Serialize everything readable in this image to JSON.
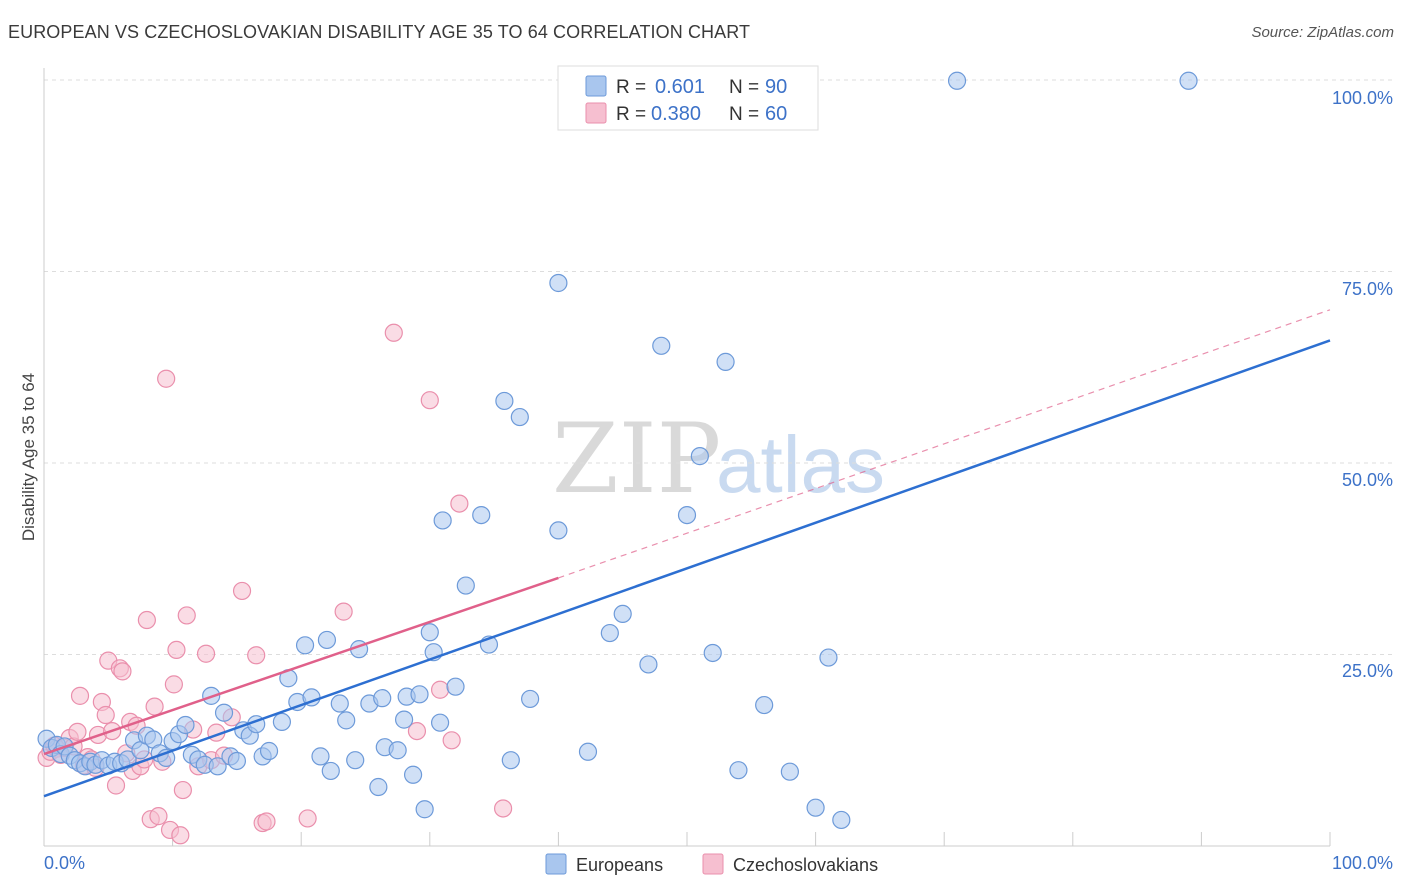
{
  "title": "EUROPEAN VS CZECHOSLOVAKIAN DISABILITY AGE 35 TO 64 CORRELATION CHART",
  "source": "Source: ZipAtlas.com",
  "watermark": {
    "part1": "ZIP",
    "part2": "atlas"
  },
  "colors": {
    "european_fill": "#a9c6ee",
    "european_stroke": "#6d9ad9",
    "european_line": "#2d6fd1",
    "czech_fill": "#f6bfd0",
    "czech_stroke": "#ea8fac",
    "czech_line": "#e0608a",
    "grid": "#dddddd",
    "axis_label": "#3d72c8"
  },
  "legend": {
    "european": {
      "r_label": "R =",
      "r_value": "0.601",
      "n_label": "N =",
      "n_value": "90"
    },
    "czech": {
      "r_label": "R =",
      "r_value": "0.380",
      "n_label": "N =",
      "n_value": "60"
    }
  },
  "chart_data": {
    "type": "scatter",
    "title": "EUROPEAN VS CZECHOSLOVAKIAN DISABILITY AGE 35 TO 64 CORRELATION CHART",
    "xlabel": "",
    "ylabel": "Disability Age 35 to 64",
    "xlim": [
      0,
      100
    ],
    "ylim": [
      0,
      100
    ],
    "x_tick_labels": [
      "0.0%",
      "100.0%"
    ],
    "y_ticks": [
      25,
      50,
      75,
      100
    ],
    "y_tick_labels": [
      "25.0%",
      "50.0%",
      "75.0%",
      "100.0%"
    ],
    "series": [
      {
        "name": "Europeans",
        "r": 0.601,
        "n": 90,
        "trend": {
          "x0": 0,
          "y0": 6.5,
          "x1": 100,
          "y1": 66,
          "dashed_to": null
        },
        "points": [
          [
            0.2,
            14.0
          ],
          [
            0.6,
            12.8
          ],
          [
            1.0,
            13.2
          ],
          [
            1.3,
            12.0
          ],
          [
            1.6,
            13.0
          ],
          [
            2.0,
            11.8
          ],
          [
            2.4,
            11.2
          ],
          [
            2.8,
            10.8
          ],
          [
            3.2,
            10.4
          ],
          [
            3.6,
            11.0
          ],
          [
            4.0,
            10.6
          ],
          [
            4.5,
            11.2
          ],
          [
            5.0,
            10.5
          ],
          [
            5.5,
            11.0
          ],
          [
            6.0,
            10.8
          ],
          [
            6.5,
            11.3
          ],
          [
            7.0,
            13.8
          ],
          [
            7.5,
            12.5
          ],
          [
            8.0,
            14.4
          ],
          [
            8.5,
            13.9
          ],
          [
            9.0,
            12.1
          ],
          [
            9.5,
            11.5
          ],
          [
            10.0,
            13.7
          ],
          [
            10.5,
            14.6
          ],
          [
            11.0,
            15.8
          ],
          [
            11.5,
            11.9
          ],
          [
            12.0,
            11.3
          ],
          [
            12.5,
            10.6
          ],
          [
            13.0,
            19.6
          ],
          [
            13.5,
            10.4
          ],
          [
            14.0,
            17.4
          ],
          [
            14.5,
            11.7
          ],
          [
            15.0,
            11.1
          ],
          [
            15.5,
            15.1
          ],
          [
            16.0,
            14.4
          ],
          [
            16.5,
            15.9
          ],
          [
            17.0,
            11.7
          ],
          [
            17.5,
            12.4
          ],
          [
            18.5,
            16.2
          ],
          [
            19.0,
            21.9
          ],
          [
            19.7,
            18.8
          ],
          [
            20.3,
            26.2
          ],
          [
            20.8,
            19.4
          ],
          [
            21.5,
            11.7
          ],
          [
            22.3,
            9.8
          ],
          [
            22.0,
            26.9
          ],
          [
            23.0,
            18.6
          ],
          [
            23.5,
            16.4
          ],
          [
            24.2,
            11.2
          ],
          [
            24.5,
            25.7
          ],
          [
            25.3,
            18.6
          ],
          [
            26.0,
            7.7
          ],
          [
            26.3,
            19.3
          ],
          [
            26.5,
            12.9
          ],
          [
            27.5,
            12.5
          ],
          [
            28.0,
            16.5
          ],
          [
            28.2,
            19.5
          ],
          [
            28.7,
            9.3
          ],
          [
            29.2,
            19.8
          ],
          [
            29.6,
            4.8
          ],
          [
            30.0,
            27.9
          ],
          [
            30.3,
            25.3
          ],
          [
            30.8,
            16.1
          ],
          [
            31.0,
            42.5
          ],
          [
            32.0,
            20.8
          ],
          [
            32.8,
            34.0
          ],
          [
            34.0,
            43.2
          ],
          [
            34.6,
            26.3
          ],
          [
            35.8,
            58.1
          ],
          [
            36.3,
            11.2
          ],
          [
            37.0,
            56.0
          ],
          [
            37.8,
            19.2
          ],
          [
            40.0,
            41.2
          ],
          [
            40.0,
            73.5
          ],
          [
            42.3,
            12.3
          ],
          [
            44.0,
            27.8
          ],
          [
            45.0,
            30.3
          ],
          [
            47.0,
            23.7
          ],
          [
            48.0,
            65.3
          ],
          [
            50.0,
            43.2
          ],
          [
            51.0,
            50.9
          ],
          [
            52.0,
            25.2
          ],
          [
            53.0,
            63.2
          ],
          [
            54.0,
            9.9
          ],
          [
            56.0,
            18.4
          ],
          [
            58.0,
            9.7
          ],
          [
            60.0,
            5.0
          ],
          [
            61.0,
            24.6
          ],
          [
            62.0,
            3.4
          ],
          [
            71.0,
            99.9
          ],
          [
            89.0,
            99.9
          ]
        ]
      },
      {
        "name": "Czechoslovakians",
        "r": 0.38,
        "n": 60,
        "trend": {
          "x0": 0,
          "y0": 12.0,
          "x1": 40,
          "y1": 35.0,
          "dashed_to": {
            "x": 100,
            "y": 70.0
          }
        },
        "points": [
          [
            0.2,
            11.5
          ],
          [
            0.5,
            12.3
          ],
          [
            0.8,
            13.1
          ],
          [
            1.0,
            12.7
          ],
          [
            1.3,
            11.9
          ],
          [
            1.6,
            12.8
          ],
          [
            2.0,
            14.1
          ],
          [
            2.3,
            13.0
          ],
          [
            2.6,
            14.9
          ],
          [
            2.8,
            19.6
          ],
          [
            3.1,
            10.5
          ],
          [
            3.4,
            11.6
          ],
          [
            3.7,
            11.3
          ],
          [
            4.0,
            10.2
          ],
          [
            4.2,
            14.5
          ],
          [
            4.5,
            18.8
          ],
          [
            4.8,
            17.1
          ],
          [
            5.0,
            24.2
          ],
          [
            5.3,
            15.0
          ],
          [
            5.6,
            7.9
          ],
          [
            5.9,
            23.2
          ],
          [
            6.1,
            22.8
          ],
          [
            6.4,
            12.1
          ],
          [
            6.7,
            16.2
          ],
          [
            6.9,
            9.8
          ],
          [
            7.2,
            15.7
          ],
          [
            7.5,
            10.4
          ],
          [
            7.8,
            11.3
          ],
          [
            8.0,
            29.5
          ],
          [
            8.3,
            3.5
          ],
          [
            8.6,
            18.2
          ],
          [
            8.9,
            3.9
          ],
          [
            9.2,
            11.0
          ],
          [
            9.5,
            61.0
          ],
          [
            9.8,
            2.1
          ],
          [
            10.1,
            21.1
          ],
          [
            10.3,
            25.6
          ],
          [
            10.6,
            1.4
          ],
          [
            10.8,
            7.3
          ],
          [
            11.1,
            30.1
          ],
          [
            11.6,
            15.2
          ],
          [
            12.0,
            10.4
          ],
          [
            12.6,
            25.1
          ],
          [
            13.0,
            11.2
          ],
          [
            13.4,
            14.8
          ],
          [
            14.0,
            11.8
          ],
          [
            14.6,
            16.8
          ],
          [
            15.4,
            33.3
          ],
          [
            16.5,
            24.9
          ],
          [
            17.0,
            3.0
          ],
          [
            17.3,
            3.2
          ],
          [
            20.5,
            3.6
          ],
          [
            23.3,
            30.6
          ],
          [
            27.2,
            67.0
          ],
          [
            29.0,
            15.0
          ],
          [
            30.0,
            58.2
          ],
          [
            30.8,
            20.4
          ],
          [
            31.7,
            13.8
          ],
          [
            32.3,
            44.7
          ],
          [
            35.7,
            4.9
          ]
        ]
      }
    ],
    "legend_position": "top-center",
    "bottom_legend": [
      "Europeans",
      "Czechoslovakians"
    ],
    "grid": true
  }
}
